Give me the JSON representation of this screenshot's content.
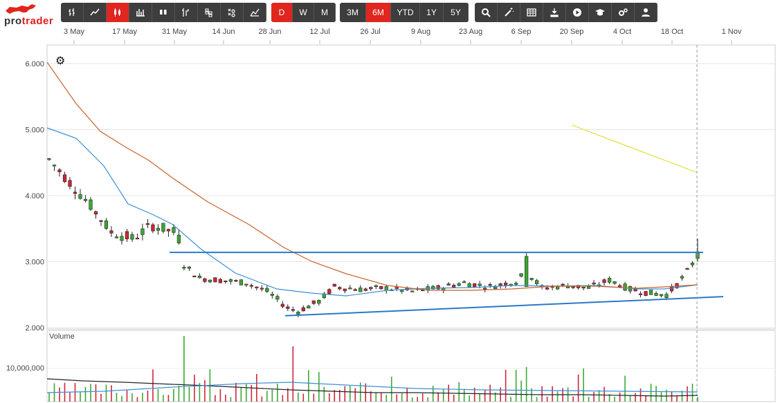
{
  "logo": {
    "text_pro": "pro",
    "text_trader": "trader"
  },
  "toolbar": {
    "chart_types": [
      "ohlc-icon",
      "line-icon",
      "candle-icon",
      "hlc-icon",
      "hollow-candle-icon",
      "step-icon",
      "renko-icon",
      "point-figure-icon",
      "area-icon"
    ],
    "active_chart_type": 2,
    "periods": [
      "D",
      "W",
      "M"
    ],
    "active_period": 0,
    "ranges": [
      "3M",
      "6M",
      "YTD",
      "1Y",
      "5Y"
    ],
    "active_range": 1,
    "tools": [
      "search-icon",
      "magic-wand-icon",
      "table-icon",
      "download-icon",
      "play-icon",
      "graduation-cap-icon",
      "settings-icon",
      "user-icon"
    ]
  },
  "chart_data": {
    "type": "candlestick",
    "x_tick_labels": [
      "3 May",
      "17 May",
      "31 May",
      "14 Jun",
      "28 Jun",
      "12 Jul",
      "26 Jul",
      "9 Aug",
      "23 Aug",
      "6 Sep",
      "20 Sep",
      "4 Oct",
      "18 Oct",
      "1 Nov"
    ],
    "y_tick_labels": [
      "6.000",
      "5.000",
      "4.000",
      "3.000",
      "2.000"
    ],
    "ylim": [
      2.0,
      6.2
    ],
    "volume_label": "Volume",
    "volume_tick_labels": [
      "10,000,000"
    ],
    "colors": {
      "up": "#3aa832",
      "down": "#d0243a",
      "ma_short": "#3a8fd6",
      "ma_long": "#c8622a",
      "trendline": "#2a78c8",
      "yellow_line": "#e6e04a",
      "volume_avg": "#222222"
    },
    "resistance_level": 3.14,
    "support_line": {
      "from": 2.18,
      "to": 2.47
    },
    "yellow_line": {
      "from": 5.07,
      "to": 4.35
    }
  }
}
